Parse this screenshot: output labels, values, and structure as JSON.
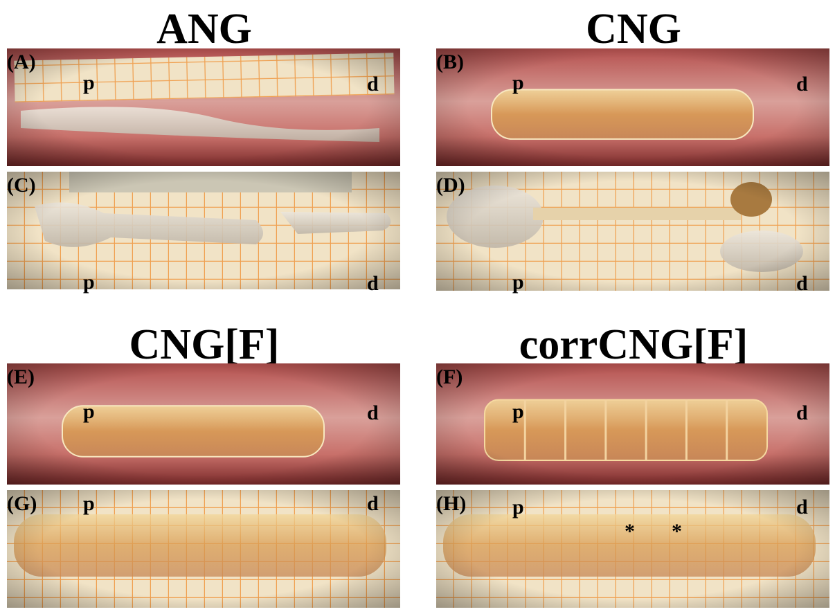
{
  "groups": [
    {
      "title": "ANG",
      "panels": [
        {
          "label": "(A)",
          "proximal": "p",
          "distal": "d"
        },
        {
          "label": "(C)",
          "proximal": "p",
          "distal": "d"
        }
      ]
    },
    {
      "title": "CNG",
      "panels": [
        {
          "label": "(B)",
          "proximal": "p",
          "distal": "d"
        },
        {
          "label": "(D)",
          "proximal": "p",
          "distal": "d"
        }
      ]
    },
    {
      "title": "CNG[F]",
      "panels": [
        {
          "label": "(E)",
          "proximal": "p",
          "distal": "d"
        },
        {
          "label": "(G)",
          "proximal": "p",
          "distal": "d"
        }
      ]
    },
    {
      "title": "corrCNG[F]",
      "panels": [
        {
          "label": "(F)",
          "proximal": "p",
          "distal": "d"
        },
        {
          "label": "(H)",
          "proximal": "p",
          "distal": "d",
          "annotations": [
            "*",
            "*"
          ]
        }
      ]
    }
  ]
}
